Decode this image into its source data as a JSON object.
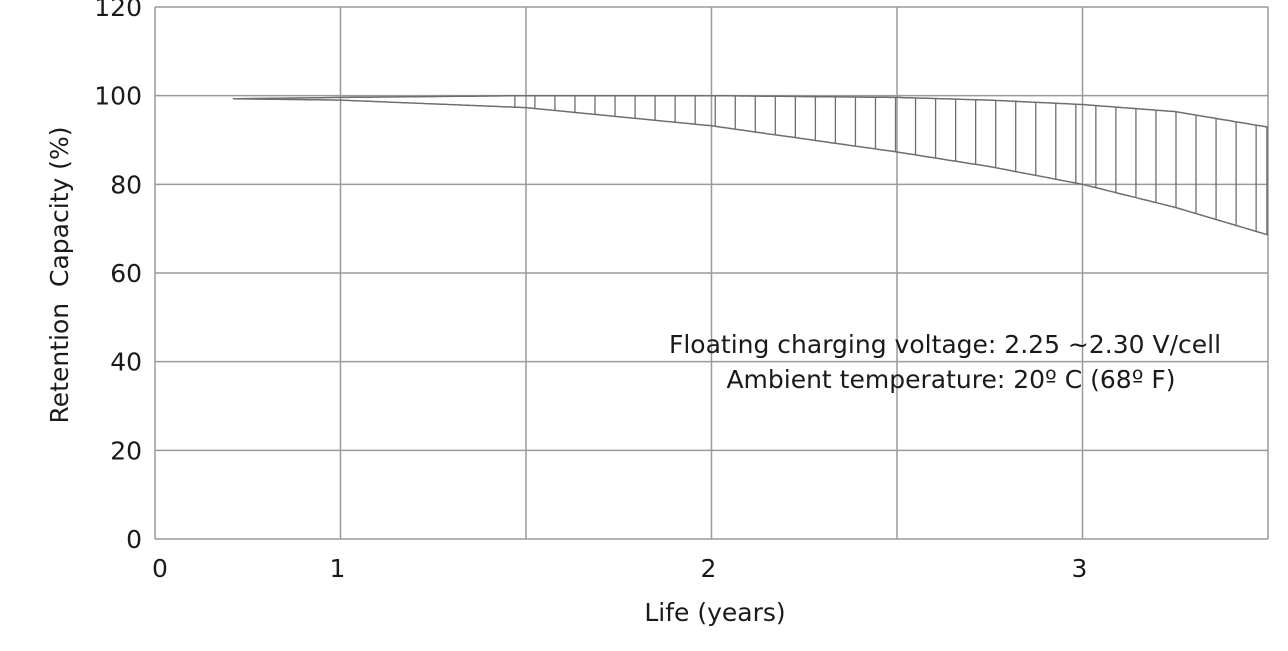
{
  "chart_data": {
    "type": "area",
    "title": "",
    "xlabel": "Life (years)",
    "ylabel": "Retention  Capacity (%)",
    "xlim": [
      0.5,
      3.5
    ],
    "ylim": [
      0,
      120
    ],
    "x_ticks": [
      {
        "value": 0.5,
        "label": "0"
      },
      {
        "value": 1,
        "label": "1"
      },
      {
        "value": 2,
        "label": "2"
      },
      {
        "value": 3,
        "label": "3"
      }
    ],
    "x_gridlines": [
      0.5,
      1,
      1.5,
      2,
      2.5,
      3,
      3.5
    ],
    "y_ticks": [
      0,
      20,
      40,
      60,
      80,
      100,
      120
    ],
    "grid": true,
    "series": [
      {
        "values": [
          [
            0.71,
            99.3
          ],
          [
            1.0,
            99.6
          ],
          [
            1.5,
            100
          ],
          [
            2.0,
            100
          ],
          [
            2.5,
            99.6
          ],
          [
            2.75,
            99.0
          ],
          [
            3.0,
            98.0
          ],
          [
            3.25,
            96.4
          ],
          [
            3.5,
            92.9
          ]
        ]
      },
      {
        "values": [
          [
            0.71,
            99.3
          ],
          [
            1.0,
            99.0
          ],
          [
            1.5,
            97.3
          ],
          [
            2.0,
            93.2
          ],
          [
            2.5,
            87.3
          ],
          [
            2.75,
            84.0
          ],
          [
            3.0,
            80.0
          ],
          [
            3.25,
            74.8
          ],
          [
            3.5,
            68.6
          ]
        ]
      }
    ],
    "hatch_band": {
      "from": 1.47,
      "to": 3.5,
      "style": "vertical lines"
    },
    "annotations": [
      "Floating charging voltage: 2.25 ~2.30 V/cell",
      "Ambient temperature: 20º C (68º F)"
    ],
    "colors": {
      "grid": "#9a9a9a",
      "curve": "#6e6e6e"
    }
  }
}
